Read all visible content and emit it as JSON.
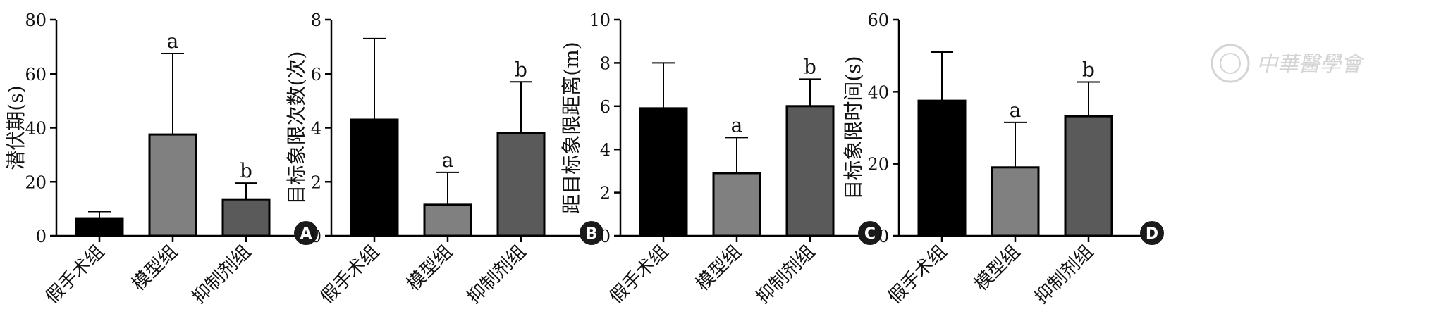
{
  "colors": {
    "sham": "#000000",
    "model": "#808080",
    "inhibitor": "#5a5a5a",
    "axis": "#000000",
    "badge": "#1a1a1a",
    "watermark": "#d4d4d4"
  },
  "watermark": {
    "text": "中華醫學會"
  },
  "chart_data": [
    {
      "type": "bar",
      "panel": "A",
      "categories": [
        "假手术组",
        "模型组",
        "抑制剂组"
      ],
      "values": [
        6.5,
        37.5,
        13.5
      ],
      "errors": [
        2.5,
        30,
        6
      ],
      "significance": [
        "",
        "a",
        "b"
      ],
      "ylabel": "潜伏期(s)",
      "ylim": [
        0,
        80
      ],
      "yticks": [
        0,
        20,
        40,
        60,
        80
      ],
      "grid": false
    },
    {
      "type": "bar",
      "panel": "B",
      "categories": [
        "假手术组",
        "模型组",
        "抑制剂组"
      ],
      "values": [
        4.3,
        1.15,
        3.8
      ],
      "errors": [
        3.0,
        1.2,
        1.9
      ],
      "significance": [
        "",
        "a",
        "b"
      ],
      "ylabel": "目标象限次数(次)",
      "ylim": [
        0,
        8
      ],
      "yticks": [
        0,
        2,
        4,
        6,
        8
      ],
      "grid": false
    },
    {
      "type": "bar",
      "panel": "C",
      "categories": [
        "假手术组",
        "模型组",
        "抑制剂组"
      ],
      "values": [
        5.9,
        2.9,
        6.0
      ],
      "errors": [
        2.1,
        1.65,
        1.25
      ],
      "significance": [
        "",
        "a",
        "b"
      ],
      "ylabel": "距目标象限距离(m)",
      "ylim": [
        0,
        10
      ],
      "yticks": [
        0,
        2,
        4,
        6,
        8,
        10
      ],
      "grid": false
    },
    {
      "type": "bar",
      "panel": "D",
      "categories": [
        "假手术组",
        "模型组",
        "抑制剂组"
      ],
      "values": [
        37.5,
        19.0,
        33.2
      ],
      "errors": [
        13.5,
        12.5,
        9.5
      ],
      "significance": [
        "",
        "a",
        "b"
      ],
      "ylabel": "目标象限时间(s)",
      "ylim": [
        0,
        60
      ],
      "yticks": [
        0,
        20,
        40,
        60
      ],
      "grid": false
    }
  ]
}
